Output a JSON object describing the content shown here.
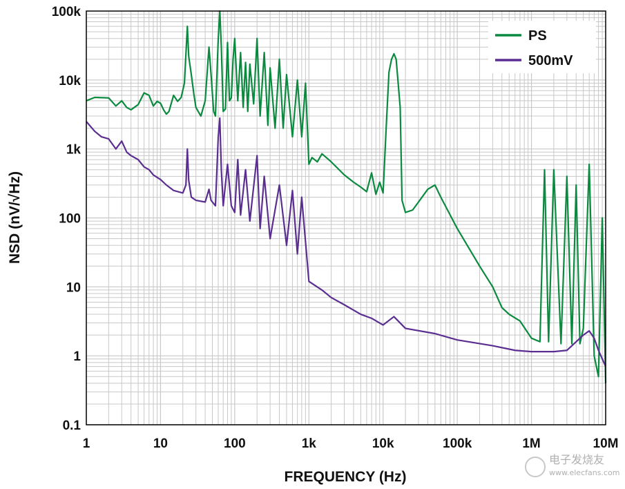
{
  "chart_data": {
    "type": "line",
    "xlabel": "FREQUENCY (Hz)",
    "ylabel": "NSD (nV/√Hz)",
    "x_scale": "log",
    "y_scale": "log",
    "xlim": [
      1,
      10000000
    ],
    "ylim": [
      0.1,
      100000
    ],
    "grid": true,
    "legend_position": "top-right",
    "x_tick_labels": [
      "1",
      "10",
      "100",
      "1k",
      "10k",
      "100k",
      "1M",
      "10M"
    ],
    "x_tick_values": [
      1,
      10,
      100,
      1000,
      10000,
      100000,
      1000000,
      10000000
    ],
    "y_tick_labels": [
      "100k",
      "10k",
      "1k",
      "100",
      "10",
      "1",
      "0.1"
    ],
    "y_tick_values": [
      100000,
      10000,
      1000,
      100,
      10,
      1,
      0.1
    ],
    "series": [
      {
        "name": "PS",
        "color": "#0a8a3e",
        "points": [
          [
            1,
            5000
          ],
          [
            1.3,
            5600
          ],
          [
            2,
            5500
          ],
          [
            2.5,
            4200
          ],
          [
            3,
            5000
          ],
          [
            3.5,
            4000
          ],
          [
            4,
            3700
          ],
          [
            5,
            4400
          ],
          [
            6,
            6500
          ],
          [
            7,
            6000
          ],
          [
            8,
            4200
          ],
          [
            9,
            4900
          ],
          [
            10,
            4600
          ],
          [
            11,
            3700
          ],
          [
            12,
            3200
          ],
          [
            13,
            3500
          ],
          [
            15,
            6000
          ],
          [
            17,
            4900
          ],
          [
            19,
            5600
          ],
          [
            21,
            9000
          ],
          [
            23,
            60000
          ],
          [
            24,
            22000
          ],
          [
            26,
            12000
          ],
          [
            28,
            6500
          ],
          [
            30,
            4000
          ],
          [
            35,
            3000
          ],
          [
            40,
            5000
          ],
          [
            45,
            30000
          ],
          [
            48,
            12000
          ],
          [
            52,
            3500
          ],
          [
            55,
            3000
          ],
          [
            60,
            40000
          ],
          [
            63,
            100000
          ],
          [
            66,
            30000
          ],
          [
            70,
            3500
          ],
          [
            75,
            3800
          ],
          [
            80,
            35000
          ],
          [
            85,
            5000
          ],
          [
            90,
            5500
          ],
          [
            95,
            20000
          ],
          [
            100,
            40000
          ],
          [
            110,
            5000
          ],
          [
            120,
            25000
          ],
          [
            130,
            4000
          ],
          [
            140,
            18000
          ],
          [
            150,
            3500
          ],
          [
            160,
            17000
          ],
          [
            180,
            4500
          ],
          [
            200,
            40000
          ],
          [
            220,
            3000
          ],
          [
            250,
            25000
          ],
          [
            280,
            2200
          ],
          [
            300,
            15000
          ],
          [
            350,
            2000
          ],
          [
            400,
            20000
          ],
          [
            450,
            2000
          ],
          [
            500,
            12000
          ],
          [
            600,
            1500
          ],
          [
            700,
            10000
          ],
          [
            800,
            1500
          ],
          [
            900,
            9000
          ],
          [
            1000,
            600
          ],
          [
            1100,
            750
          ],
          [
            1300,
            650
          ],
          [
            1500,
            850
          ],
          [
            2000,
            650
          ],
          [
            3000,
            420
          ],
          [
            4000,
            330
          ],
          [
            5000,
            280
          ],
          [
            6000,
            240
          ],
          [
            7000,
            450
          ],
          [
            8000,
            220
          ],
          [
            9000,
            330
          ],
          [
            10000,
            230
          ],
          [
            11000,
            2000
          ],
          [
            12000,
            13000
          ],
          [
            13000,
            20000
          ],
          [
            14000,
            24000
          ],
          [
            15000,
            20000
          ],
          [
            17000,
            4000
          ],
          [
            18000,
            180
          ],
          [
            20000,
            120
          ],
          [
            25000,
            130
          ],
          [
            30000,
            170
          ],
          [
            40000,
            260
          ],
          [
            50000,
            300
          ],
          [
            60000,
            200
          ],
          [
            100000,
            70
          ],
          [
            200000,
            20
          ],
          [
            300000,
            10
          ],
          [
            400000,
            5
          ],
          [
            500000,
            4
          ],
          [
            700000,
            3.2
          ],
          [
            1000000,
            1.8
          ],
          [
            1300000,
            1.6
          ],
          [
            1500000,
            500
          ],
          [
            1700000,
            1.6
          ],
          [
            2000000,
            500
          ],
          [
            2500000,
            1.5
          ],
          [
            3000000,
            400
          ],
          [
            3500000,
            1.5
          ],
          [
            4000000,
            300
          ],
          [
            4500000,
            1.5
          ],
          [
            5000000,
            2.5
          ],
          [
            6000000,
            600
          ],
          [
            7000000,
            1.0
          ],
          [
            8000000,
            0.5
          ],
          [
            9000000,
            100
          ],
          [
            10000000,
            0.4
          ]
        ]
      },
      {
        "name": "500mV",
        "color": "#5a2d91",
        "points": [
          [
            1,
            2500
          ],
          [
            1.3,
            1800
          ],
          [
            1.6,
            1500
          ],
          [
            2,
            1400
          ],
          [
            2.5,
            1000
          ],
          [
            3,
            1300
          ],
          [
            3.5,
            900
          ],
          [
            4,
            800
          ],
          [
            5,
            700
          ],
          [
            6,
            550
          ],
          [
            7,
            500
          ],
          [
            8,
            420
          ],
          [
            10,
            360
          ],
          [
            12,
            300
          ],
          [
            15,
            250
          ],
          [
            20,
            230
          ],
          [
            22,
            300
          ],
          [
            23,
            1000
          ],
          [
            24,
            350
          ],
          [
            26,
            200
          ],
          [
            30,
            180
          ],
          [
            40,
            170
          ],
          [
            45,
            260
          ],
          [
            48,
            180
          ],
          [
            55,
            150
          ],
          [
            60,
            1500
          ],
          [
            63,
            2800
          ],
          [
            66,
            500
          ],
          [
            70,
            150
          ],
          [
            80,
            600
          ],
          [
            90,
            150
          ],
          [
            100,
            120
          ],
          [
            110,
            700
          ],
          [
            120,
            110
          ],
          [
            140,
            500
          ],
          [
            160,
            90
          ],
          [
            200,
            800
          ],
          [
            220,
            70
          ],
          [
            250,
            400
          ],
          [
            300,
            50
          ],
          [
            400,
            300
          ],
          [
            500,
            40
          ],
          [
            600,
            250
          ],
          [
            700,
            30
          ],
          [
            800,
            200
          ],
          [
            1000,
            12
          ],
          [
            1500,
            9
          ],
          [
            2000,
            7
          ],
          [
            3000,
            5.5
          ],
          [
            5000,
            4
          ],
          [
            7000,
            3.5
          ],
          [
            10000,
            2.8
          ],
          [
            14000,
            3.7
          ],
          [
            20000,
            2.5
          ],
          [
            50000,
            2.1
          ],
          [
            100000,
            1.7
          ],
          [
            300000,
            1.4
          ],
          [
            600000,
            1.2
          ],
          [
            1000000,
            1.15
          ],
          [
            2000000,
            1.15
          ],
          [
            3000000,
            1.2
          ],
          [
            4000000,
            1.6
          ],
          [
            5000000,
            2.0
          ],
          [
            6000000,
            2.3
          ],
          [
            7000000,
            1.8
          ],
          [
            8000000,
            1.2
          ],
          [
            10000000,
            0.7
          ]
        ]
      }
    ]
  },
  "watermark": "电子发烧友",
  "watermark_sub": "www.elecfans.com"
}
